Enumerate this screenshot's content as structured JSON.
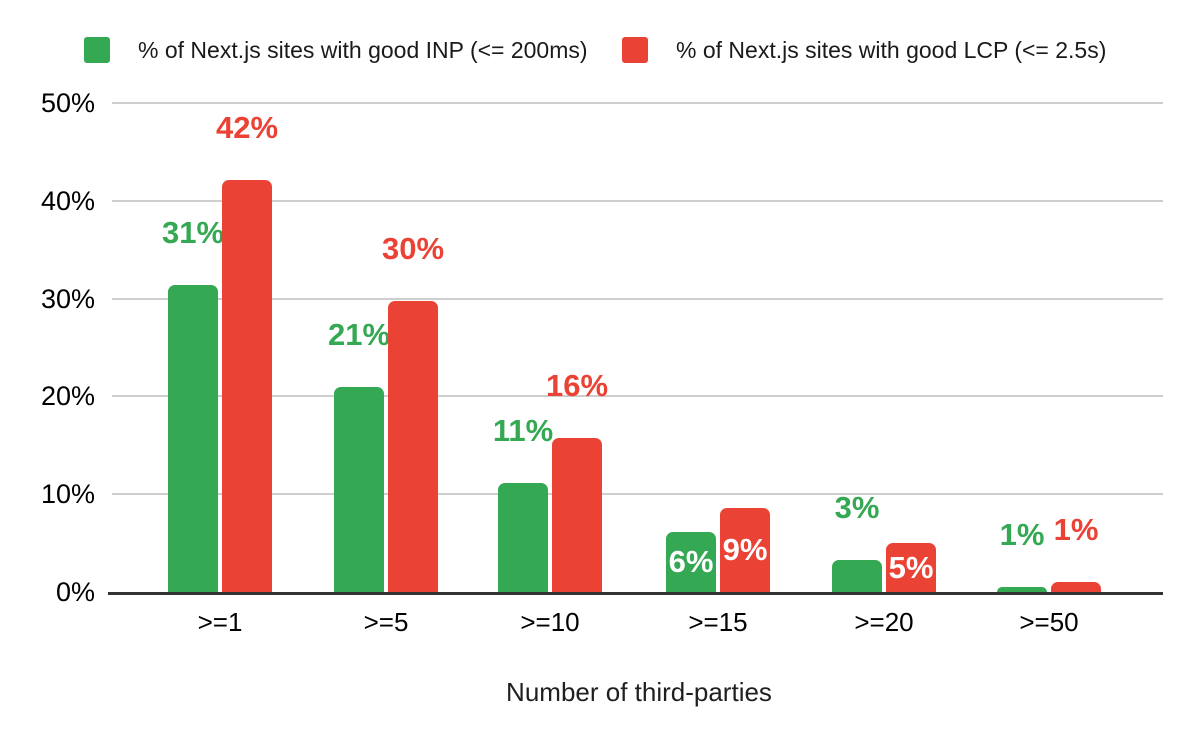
{
  "legend": {
    "items": [
      {
        "label": "% of Next.js sites with good INP (<= 200ms)",
        "color": "#34a853"
      },
      {
        "label": "% of Next.js sites with good LCP (<= 2.5s)",
        "color": "#ea4335"
      }
    ]
  },
  "chart_data": {
    "type": "bar",
    "title": "",
    "xlabel": "Number of third-parties",
    "ylabel": "",
    "ylim": [
      0,
      50
    ],
    "ytick_values": [
      0,
      10,
      20,
      30,
      40,
      50
    ],
    "ytick_labels": [
      "0%",
      "10%",
      "20%",
      "30%",
      "40%",
      "50%"
    ],
    "grid": true,
    "legend_position": "top",
    "categories": [
      ">=1",
      ">=5",
      ">=10",
      ">=15",
      ">=20",
      ">=50"
    ],
    "series": [
      {
        "name": "% of Next.js sites with good INP (<= 200ms)",
        "key": "inp",
        "color": "#34a853",
        "values": [
          31,
          21,
          11,
          6,
          3,
          1
        ],
        "data_labels": [
          "31%",
          "21%",
          "11%",
          "6%",
          "3%",
          "1%"
        ],
        "bar_heights_pct": [
          31.4,
          21.0,
          11.1,
          6.1,
          3.3,
          0.5
        ],
        "label_placement": [
          "above",
          "above",
          "above",
          "inside",
          "above",
          "above"
        ]
      },
      {
        "name": "% of Next.js sites with good LCP (<= 2.5s)",
        "key": "lcp",
        "color": "#ea4335",
        "values": [
          42,
          30,
          16,
          9,
          5,
          1
        ],
        "data_labels": [
          "42%",
          "30%",
          "16%",
          "9%",
          "5%",
          "1%"
        ],
        "bar_heights_pct": [
          42.1,
          29.8,
          15.7,
          8.6,
          5.0,
          1.0
        ],
        "label_placement": [
          "above",
          "above",
          "above",
          "inside",
          "inside",
          "above"
        ]
      }
    ]
  },
  "colors": {
    "green": "#34a853",
    "red": "#ea4335",
    "gridline": "#cecece",
    "axis_line": "#333333",
    "text": "#000000",
    "in_bar_label": "#ffffff",
    "background": "#ffffff"
  }
}
